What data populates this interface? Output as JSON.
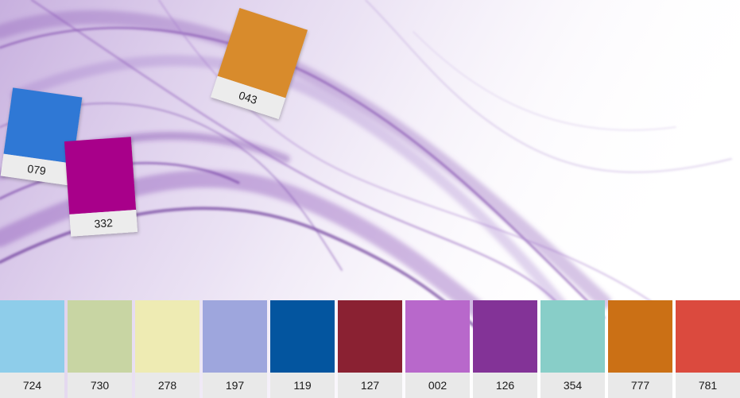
{
  "tilted_chips": [
    {
      "code": "043",
      "color": "#D88B2C"
    },
    {
      "code": "079",
      "color": "#2F78D5"
    },
    {
      "code": "332",
      "color": "#A8008A"
    }
  ],
  "swatches": [
    {
      "code": "724",
      "color": "#8ECDEA"
    },
    {
      "code": "730",
      "color": "#C8D5A3"
    },
    {
      "code": "278",
      "color": "#EEEBB3"
    },
    {
      "code": "197",
      "color": "#9EA6DD"
    },
    {
      "code": "119",
      "color": "#03559F"
    },
    {
      "code": "127",
      "color": "#8A2132"
    },
    {
      "code": "002",
      "color": "#B868CB"
    },
    {
      "code": "126",
      "color": "#833397"
    },
    {
      "code": "354",
      "color": "#88CEC8"
    },
    {
      "code": "777",
      "color": "#CB7015"
    },
    {
      "code": "781",
      "color": "#DB4A3E"
    }
  ]
}
